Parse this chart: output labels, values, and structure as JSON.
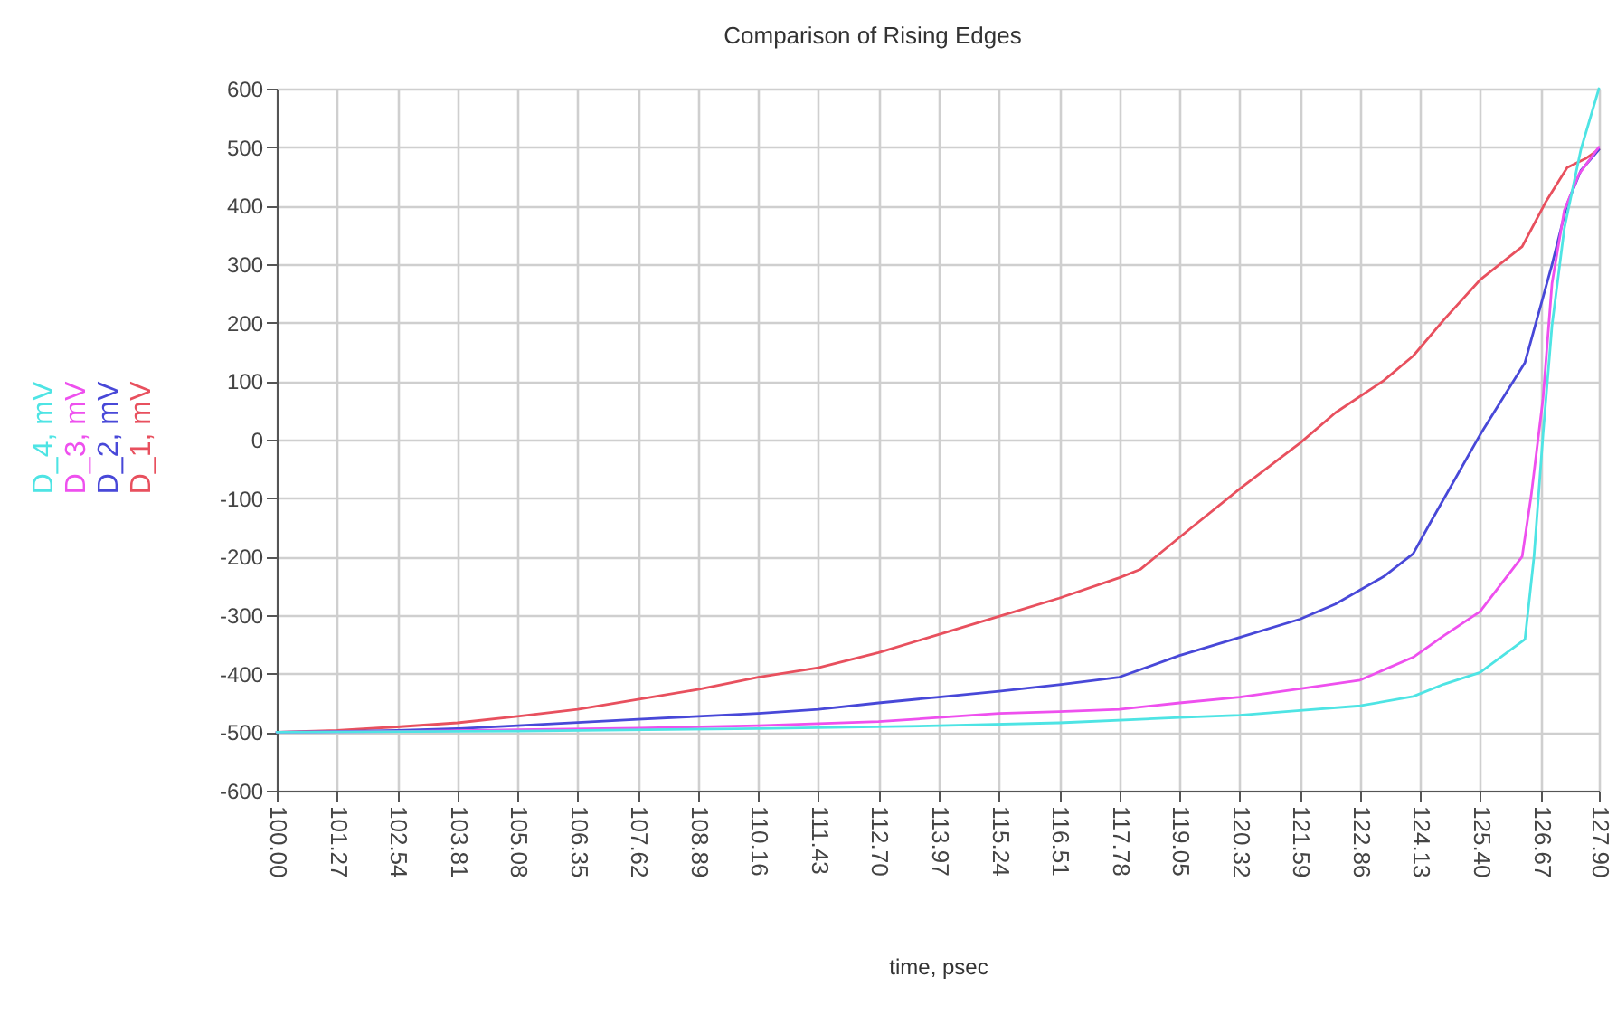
{
  "chart_data": {
    "type": "line",
    "title": "Comparison of Rising Edges",
    "xlabel": "time, psec",
    "xlim": [
      100,
      127.9
    ],
    "ylim": [
      -600,
      600
    ],
    "xticks": [
      {
        "value": 100,
        "label": "100.00"
      },
      101.27,
      102.54,
      103.81,
      105.08,
      106.35,
      107.62,
      108.89,
      110.16,
      111.43,
      {
        "value": 112.7,
        "label": "112.70"
      },
      113.97,
      115.24,
      116.51,
      117.78,
      119.05,
      120.32,
      121.59,
      122.86,
      124.13,
      {
        "value": 125.4,
        "label": "125.40"
      },
      126.67,
      {
        "value": 127.9,
        "label": "127.90"
      }
    ],
    "yticks": [
      -600,
      -500,
      -400,
      -300,
      -200,
      -100,
      0,
      100,
      200,
      300,
      400,
      500,
      600
    ],
    "grid": true,
    "legend": "left",
    "line_style": "solid",
    "series": [
      {
        "name": "D_1, mV",
        "color": "#e8505e",
        "x": [
          100,
          101.27,
          102.54,
          103.81,
          105.08,
          106.35,
          107.62,
          108.89,
          110.16,
          111.43,
          112.7,
          113.97,
          115.24,
          116.51,
          117.78,
          118.22,
          119.05,
          120.32,
          121.59,
          122.34,
          123.36,
          123.98,
          124.63,
          125.39,
          126.28,
          126.79,
          127.23,
          127.61,
          127.9
        ],
        "values": [
          -500,
          -497,
          -491,
          -484,
          -473,
          -461,
          -444,
          -427,
          -406,
          -390,
          -364,
          -333,
          -302,
          -271,
          -236,
          -222,
          -167,
          -84,
          -6,
          46,
          101,
          143,
          205,
          273,
          330,
          408,
          465,
          480,
          496
        ]
      },
      {
        "name": "D_2, mV",
        "color": "#4848d8",
        "x": [
          100,
          101.27,
          102.54,
          103.81,
          105.08,
          107.62,
          110.16,
          111.43,
          112.7,
          113.97,
          115.24,
          116.51,
          117.78,
          119.05,
          120.32,
          121.59,
          122.34,
          123.36,
          123.98,
          124.37,
          125.39,
          126.34,
          126.91,
          127.23,
          127.52,
          127.9
        ],
        "values": [
          -500,
          -499,
          -497,
          -494,
          -489,
          -478,
          -468,
          -461,
          -450,
          -440,
          -430,
          -419,
          -406,
          -369,
          -338,
          -307,
          -281,
          -234,
          -195,
          -138,
          8,
          132,
          299,
          403,
          460,
          496
        ]
      },
      {
        "name": "D_3, mV",
        "color": "#ee50ee",
        "x": [
          100,
          102.54,
          105.08,
          107.62,
          110.16,
          112.7,
          113.97,
          115.24,
          116.51,
          117.78,
          119.05,
          120.32,
          121.59,
          122.86,
          123.98,
          124.63,
          125.39,
          126.28,
          126.47,
          126.72,
          126.91,
          127.17,
          127.48,
          127.9
        ],
        "values": [
          -500,
          -499,
          -496,
          -493,
          -489,
          -482,
          -475,
          -468,
          -465,
          -461,
          -450,
          -440,
          -426,
          -411,
          -372,
          -335,
          -294,
          -200,
          -96,
          70,
          267,
          392,
          454,
          500
        ]
      },
      {
        "name": "D_4, mV",
        "color": "#4ee4e4",
        "x": [
          100,
          105.08,
          110.16,
          113.97,
          116.51,
          119.05,
          120.32,
          121.59,
          122.86,
          123.98,
          124.63,
          125.39,
          126.34,
          126.53,
          126.72,
          126.91,
          127.17,
          127.52,
          127.9
        ],
        "values": [
          -500,
          -498,
          -494,
          -489,
          -484,
          -475,
          -471,
          -463,
          -455,
          -439,
          -418,
          -398,
          -341,
          -200,
          8,
          195,
          361,
          496,
          600
        ]
      }
    ]
  }
}
